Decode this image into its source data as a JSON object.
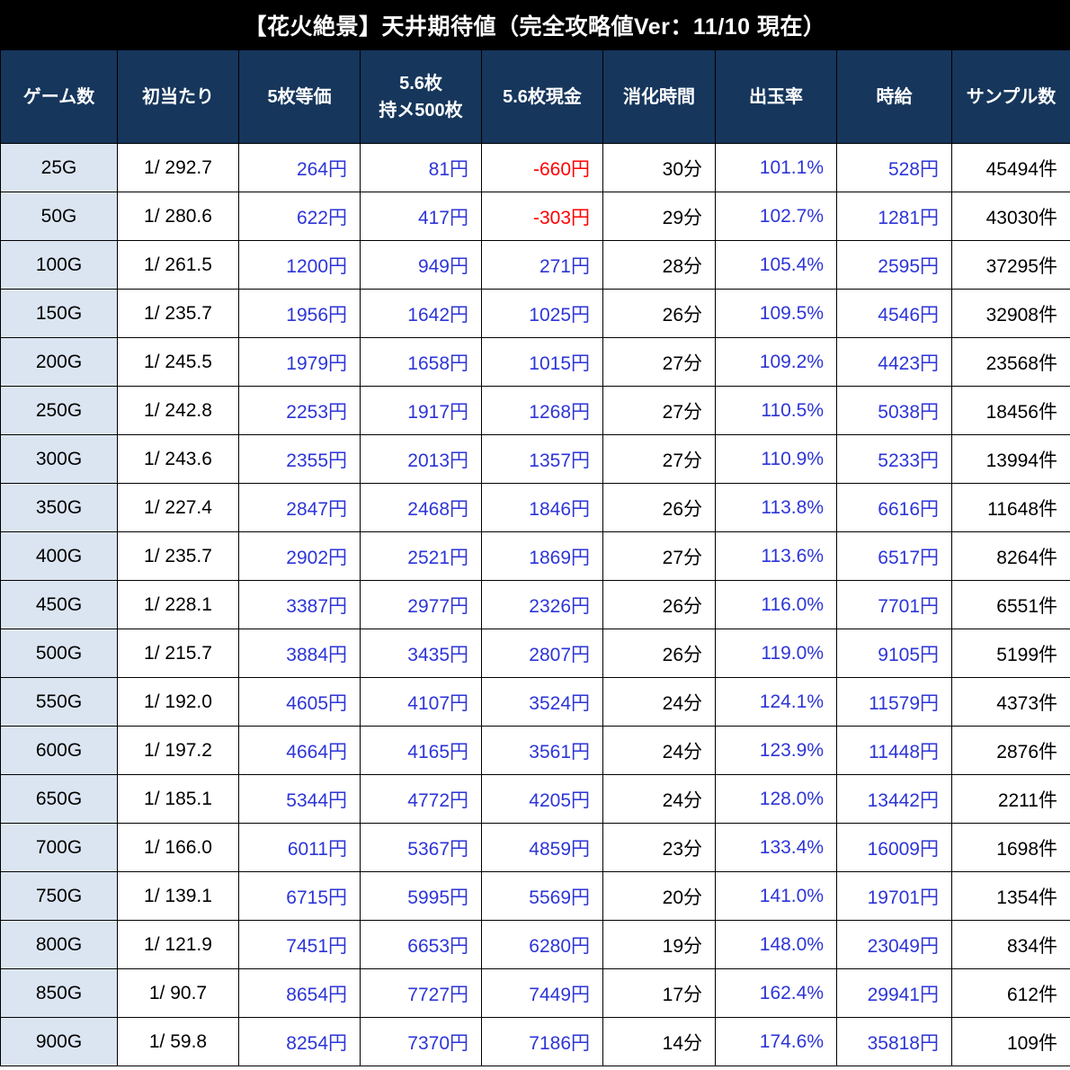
{
  "title": "【花火絶景】天井期待値（完全攻略値Ver：11/10 現在）",
  "colors": {
    "title_bg": "#000000",
    "header_bg": "#16365c",
    "row_header_bg": "#dbe5f1",
    "value_blue": "#2d35d6",
    "negative_red": "#ff0000"
  },
  "chart_data": {
    "type": "table",
    "title": "【花火絶景】天井期待値（完全攻略値Ver：11/10 現在）",
    "columns": [
      {
        "key": "games",
        "label": "ゲーム数",
        "align": "center",
        "style": "rowhead"
      },
      {
        "key": "first_hit",
        "label": "初当たり",
        "align": "center",
        "style": "plain"
      },
      {
        "key": "equal5",
        "label": "5枚等価",
        "align": "right",
        "style": "blue"
      },
      {
        "key": "hold56",
        "label": "5.6枚\n持メ500枚",
        "align": "right",
        "style": "blue"
      },
      {
        "key": "cash56",
        "label": "5.6枚現金",
        "align": "right",
        "style": "blue-neg-red"
      },
      {
        "key": "time",
        "label": "消化時間",
        "align": "right",
        "style": "plain"
      },
      {
        "key": "rate",
        "label": "出玉率",
        "align": "right",
        "style": "blue"
      },
      {
        "key": "hourly",
        "label": "時給",
        "align": "right",
        "style": "blue"
      },
      {
        "key": "samples",
        "label": "サンプル数",
        "align": "right",
        "style": "plain"
      }
    ],
    "rows": [
      [
        "25G",
        "1/ 292.7",
        "264円",
        "81円",
        "-660円",
        "30分",
        "101.1%",
        "528円",
        "45494件"
      ],
      [
        "50G",
        "1/ 280.6",
        "622円",
        "417円",
        "-303円",
        "29分",
        "102.7%",
        "1281円",
        "43030件"
      ],
      [
        "100G",
        "1/ 261.5",
        "1200円",
        "949円",
        "271円",
        "28分",
        "105.4%",
        "2595円",
        "37295件"
      ],
      [
        "150G",
        "1/ 235.7",
        "1956円",
        "1642円",
        "1025円",
        "26分",
        "109.5%",
        "4546円",
        "32908件"
      ],
      [
        "200G",
        "1/ 245.5",
        "1979円",
        "1658円",
        "1015円",
        "27分",
        "109.2%",
        "4423円",
        "23568件"
      ],
      [
        "250G",
        "1/ 242.8",
        "2253円",
        "1917円",
        "1268円",
        "27分",
        "110.5%",
        "5038円",
        "18456件"
      ],
      [
        "300G",
        "1/ 243.6",
        "2355円",
        "2013円",
        "1357円",
        "27分",
        "110.9%",
        "5233円",
        "13994件"
      ],
      [
        "350G",
        "1/ 227.4",
        "2847円",
        "2468円",
        "1846円",
        "26分",
        "113.8%",
        "6616円",
        "11648件"
      ],
      [
        "400G",
        "1/ 235.7",
        "2902円",
        "2521円",
        "1869円",
        "27分",
        "113.6%",
        "6517円",
        "8264件"
      ],
      [
        "450G",
        "1/ 228.1",
        "3387円",
        "2977円",
        "2326円",
        "26分",
        "116.0%",
        "7701円",
        "6551件"
      ],
      [
        "500G",
        "1/ 215.7",
        "3884円",
        "3435円",
        "2807円",
        "26分",
        "119.0%",
        "9105円",
        "5199件"
      ],
      [
        "550G",
        "1/ 192.0",
        "4605円",
        "4107円",
        "3524円",
        "24分",
        "124.1%",
        "11579円",
        "4373件"
      ],
      [
        "600G",
        "1/ 197.2",
        "4664円",
        "4165円",
        "3561円",
        "24分",
        "123.9%",
        "11448円",
        "2876件"
      ],
      [
        "650G",
        "1/ 185.1",
        "5344円",
        "4772円",
        "4205円",
        "24分",
        "128.0%",
        "13442円",
        "2211件"
      ],
      [
        "700G",
        "1/ 166.0",
        "6011円",
        "5367円",
        "4859円",
        "23分",
        "133.4%",
        "16009円",
        "1698件"
      ],
      [
        "750G",
        "1/ 139.1",
        "6715円",
        "5995円",
        "5569円",
        "20分",
        "141.0%",
        "19701円",
        "1354件"
      ],
      [
        "800G",
        "1/ 121.9",
        "7451円",
        "6653円",
        "6280円",
        "19分",
        "148.0%",
        "23049円",
        "834件"
      ],
      [
        "850G",
        "1/ 90.7",
        "8654円",
        "7727円",
        "7449円",
        "17分",
        "162.4%",
        "29941円",
        "612件"
      ],
      [
        "900G",
        "1/ 59.8",
        "8254円",
        "7370円",
        "7186円",
        "14分",
        "174.6%",
        "35818円",
        "109件"
      ]
    ]
  }
}
